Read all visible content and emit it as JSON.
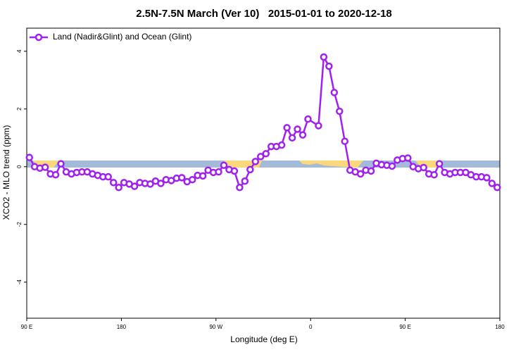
{
  "chart_data": {
    "type": "line",
    "title": "2.5N-7.5N March (Ver 10)   2015-01-01 to 2020-12-18",
    "x_label": "Longitude (deg E)",
    "y_label": "XCO2 - MLO trend (ppm)",
    "legend": "top-left",
    "xlim": [
      90,
      540
    ],
    "ylim": [
      -5.25,
      4.8
    ],
    "xticks": [
      {
        "value": 90,
        "label": "90 E"
      },
      180,
      {
        "value": 270,
        "label": "90 W"
      },
      {
        "value": 360,
        "label": "0"
      },
      {
        "value": 450,
        "label": "90 E"
      },
      {
        "value": 540,
        "label": "180"
      }
    ],
    "yticks": [
      -4,
      -2,
      0,
      2,
      4
    ],
    "x": [
      92.5,
      97.5,
      102.5,
      107.5,
      112.5,
      117.5,
      122.5,
      127.5,
      132.5,
      137.5,
      142.5,
      147.5,
      152.5,
      157.5,
      162.5,
      167.5,
      172.5,
      177.5,
      182.5,
      187.5,
      192.5,
      197.5,
      202.5,
      207.5,
      212.5,
      217.5,
      222.5,
      227.5,
      232.5,
      237.5,
      242.5,
      247.5,
      252.5,
      257.5,
      262.5,
      267.5,
      272.5,
      277.5,
      282.5,
      287.5,
      292.5,
      297.5,
      302.5,
      307.5,
      312.5,
      317.5,
      322.5,
      327.5,
      332.5,
      337.5,
      342.5,
      347.5,
      352.5,
      357.5,
      367.5,
      372.5,
      377.5,
      382.5,
      387.5,
      392.5,
      397.5,
      402.5,
      407.5,
      412.5,
      417.5,
      422.5,
      427.5,
      432.5,
      437.5,
      442.5,
      447.5,
      452.5,
      457.5,
      462.5,
      467.5,
      472.5,
      477.5,
      482.5,
      487.5,
      492.5,
      497.5,
      502.5,
      507.5,
      512.5,
      517.5,
      522.5,
      527.5,
      532.5,
      537.5
    ],
    "series": [
      {
        "name": "Land (Nadir&Glint) and Ocean (Glint)",
        "color": "#a020f0",
        "values": [
          0.32,
          0.0,
          -0.05,
          -0.02,
          -0.25,
          -0.28,
          0.1,
          -0.18,
          -0.25,
          -0.2,
          -0.18,
          -0.18,
          -0.25,
          -0.3,
          -0.35,
          -0.35,
          -0.55,
          -0.72,
          -0.55,
          -0.6,
          -0.68,
          -0.55,
          -0.58,
          -0.6,
          -0.5,
          -0.58,
          -0.45,
          -0.48,
          -0.4,
          -0.38,
          -0.52,
          -0.45,
          -0.3,
          -0.32,
          -0.12,
          -0.2,
          -0.18,
          0.05,
          -0.1,
          -0.15,
          -0.72,
          -0.5,
          -0.1,
          0.18,
          0.35,
          0.45,
          0.7,
          0.7,
          0.75,
          1.35,
          1.0,
          1.3,
          1.1,
          1.65,
          1.42,
          3.8,
          3.48,
          2.57,
          1.92,
          0.88,
          -0.12,
          -0.18,
          -0.25,
          -0.12,
          -0.15,
          0.12,
          0.07,
          0.05,
          0.02,
          0.23,
          0.28,
          0.3,
          0.0,
          -0.07,
          -0.03,
          -0.25,
          -0.28,
          0.1,
          -0.2,
          -0.25,
          -0.2,
          -0.2,
          -0.2,
          -0.28,
          -0.35,
          -0.35,
          -0.38,
          -0.58,
          -0.72
        ]
      }
    ]
  }
}
